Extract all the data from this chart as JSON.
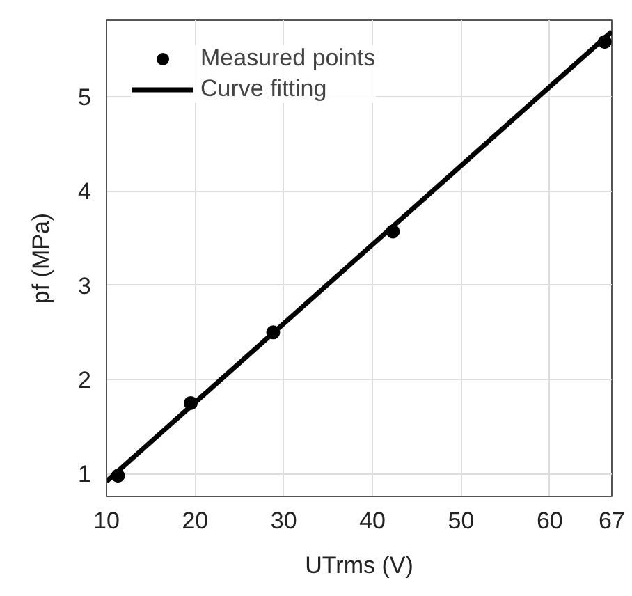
{
  "chart_data": {
    "type": "scatter",
    "xlabel": "UTrms (V)",
    "ylabel": "pf (MPa)",
    "series": [
      {
        "name": "Measured points",
        "color": "#000000",
        "marker": "circle",
        "x": [
          11.3,
          19.5,
          28.8,
          42.3,
          66.2
        ],
        "values": [
          0.98,
          1.75,
          2.5,
          3.57,
          5.58
        ]
      },
      {
        "name": "Curve fitting",
        "type": "line",
        "color": "#000000",
        "line_style": "solid",
        "x": [
          10,
          67
        ],
        "values": [
          0.92,
          5.69
        ]
      }
    ],
    "xlim": [
      10,
      67
    ],
    "ylim": [
      0.76,
      5.81
    ],
    "xticks": [
      10,
      20,
      30,
      40,
      50,
      60,
      67
    ],
    "yticks": [
      1,
      2,
      3,
      4,
      5
    ],
    "grid": true,
    "legend": "top left"
  }
}
